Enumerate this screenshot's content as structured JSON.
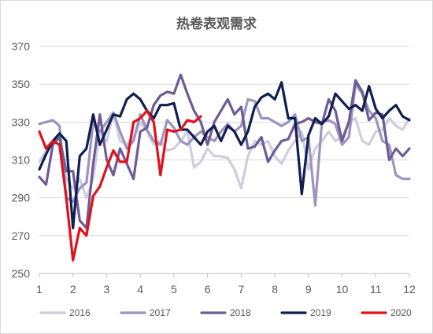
{
  "chart_data": {
    "type": "line",
    "title": "热卷表观需求",
    "xlabel": "",
    "ylabel": "",
    "xlim": [
      1,
      12
    ],
    "ylim": [
      250,
      370
    ],
    "x_ticks": [
      1,
      2,
      3,
      4,
      5,
      6,
      7,
      8,
      9,
      10,
      11,
      12
    ],
    "y_ticks": [
      250,
      270,
      290,
      310,
      330,
      350,
      370
    ],
    "grid": "horizontal",
    "legend_position": "bottom",
    "series": [
      {
        "name": "2016",
        "color": "#d0cede",
        "x": [
          1.0,
          1.2,
          1.4,
          1.6,
          1.8,
          2.0,
          2.2,
          2.4,
          2.6,
          2.8,
          3.0,
          3.2,
          3.4,
          3.6,
          3.8,
          4.0,
          4.2,
          4.4,
          4.6,
          4.8,
          5.0,
          5.2,
          5.4,
          5.6,
          5.8,
          6.0,
          6.2,
          6.4,
          6.6,
          6.8,
          7.0,
          7.2,
          7.4,
          7.6,
          7.8,
          8.0,
          8.2,
          8.4,
          8.6,
          8.8,
          9.0,
          9.2,
          9.4,
          9.6,
          9.8,
          10.0,
          10.2,
          10.4,
          10.6,
          10.8,
          11.0,
          11.2,
          11.4,
          11.6,
          11.8,
          12.0
        ],
        "values": [
          309,
          315,
          320,
          318,
          300,
          295,
          300,
          290,
          300,
          325,
          320,
          335,
          320,
          318,
          322,
          330,
          325,
          318,
          320,
          315,
          316,
          320,
          325,
          306,
          309,
          316,
          312,
          312,
          311,
          305,
          295,
          312,
          320,
          318,
          320,
          312,
          308,
          315,
          320,
          325,
          305,
          316,
          320,
          325,
          320,
          322,
          330,
          332,
          320,
          318,
          325,
          326,
          332,
          328,
          326,
          332
        ]
      },
      {
        "name": "2017",
        "color": "#9c95bf",
        "x": [
          1.0,
          1.2,
          1.4,
          1.6,
          1.8,
          2.0,
          2.2,
          2.4,
          2.6,
          2.8,
          3.0,
          3.2,
          3.4,
          3.6,
          3.8,
          4.0,
          4.2,
          4.4,
          4.6,
          4.8,
          5.0,
          5.2,
          5.4,
          5.6,
          5.8,
          6.0,
          6.2,
          6.4,
          6.6,
          6.8,
          7.0,
          7.2,
          7.4,
          7.6,
          7.8,
          8.0,
          8.2,
          8.4,
          8.6,
          8.8,
          9.0,
          9.2,
          9.4,
          9.6,
          9.8,
          10.0,
          10.2,
          10.4,
          10.6,
          10.8,
          11.0,
          11.2,
          11.4,
          11.6,
          11.8,
          12.0
        ],
        "values": [
          329,
          330,
          331,
          328,
          290,
          288,
          295,
          298,
          330,
          325,
          330,
          335,
          325,
          316,
          320,
          334,
          326,
          320,
          318,
          331,
          327,
          320,
          318,
          322,
          325,
          322,
          320,
          325,
          329,
          325,
          328,
          342,
          341,
          332,
          332,
          330,
          328,
          330,
          334,
          320,
          322,
          286,
          330,
          331,
          329,
          318,
          322,
          350,
          345,
          336,
          332,
          320,
          318,
          302,
          300,
          300
        ]
      },
      {
        "name": "2018",
        "color": "#6d5c96",
        "x": [
          1.0,
          1.2,
          1.4,
          1.6,
          1.8,
          2.0,
          2.2,
          2.4,
          2.6,
          2.8,
          3.0,
          3.2,
          3.4,
          3.6,
          3.8,
          4.0,
          4.2,
          4.4,
          4.6,
          4.8,
          5.0,
          5.2,
          5.4,
          5.6,
          5.8,
          6.0,
          6.2,
          6.4,
          6.6,
          6.8,
          7.0,
          7.2,
          7.4,
          7.6,
          7.8,
          8.0,
          8.2,
          8.4,
          8.6,
          8.8,
          9.0,
          9.2,
          9.4,
          9.6,
          9.8,
          10.0,
          10.2,
          10.4,
          10.6,
          10.8,
          11.0,
          11.2,
          11.4,
          11.6,
          11.8,
          12.0
        ],
        "values": [
          301,
          297,
          318,
          322,
          304,
          304,
          278,
          274,
          308,
          334,
          310,
          302,
          316,
          308,
          300,
          325,
          327,
          339,
          344,
          346,
          345,
          355,
          345,
          336,
          330,
          318,
          330,
          336,
          342,
          334,
          338,
          316,
          317,
          322,
          309,
          315,
          320,
          321,
          329,
          330,
          332,
          330,
          329,
          342,
          336,
          320,
          330,
          352,
          346,
          331,
          335,
          334,
          310,
          316,
          312,
          316
        ]
      },
      {
        "name": "2019",
        "color": "#0f1f50",
        "x": [
          1.0,
          1.2,
          1.4,
          1.6,
          1.8,
          2.0,
          2.2,
          2.4,
          2.6,
          2.8,
          3.0,
          3.2,
          3.4,
          3.6,
          3.8,
          4.0,
          4.2,
          4.4,
          4.6,
          4.8,
          5.0,
          5.2,
          5.4,
          5.6,
          5.8,
          6.0,
          6.2,
          6.4,
          6.6,
          6.8,
          7.0,
          7.2,
          7.4,
          7.6,
          7.8,
          8.0,
          8.2,
          8.4,
          8.6,
          8.8,
          9.0,
          9.2,
          9.4,
          9.6,
          9.8,
          10.0,
          10.2,
          10.4,
          10.6,
          10.8,
          11.0,
          11.2,
          11.4,
          11.6,
          11.8,
          12.0
        ],
        "values": [
          305,
          313,
          320,
          324,
          320,
          274,
          312,
          316,
          334,
          318,
          326,
          334,
          333,
          342,
          345,
          342,
          336,
          332,
          339,
          339,
          340,
          326,
          326,
          322,
          318,
          325,
          328,
          320,
          328,
          325,
          318,
          325,
          338,
          343,
          345,
          342,
          351,
          332,
          332,
          292,
          323,
          332,
          329,
          333,
          345,
          341,
          337,
          339,
          336,
          349,
          337,
          332,
          336,
          339,
          333,
          331
        ]
      },
      {
        "name": "2020",
        "color": "#e3101b",
        "x": [
          1.0,
          1.2,
          1.4,
          1.6,
          1.8,
          2.0,
          2.2,
          2.4,
          2.6,
          2.8,
          3.0,
          3.2,
          3.4,
          3.6,
          3.8,
          4.0,
          4.2,
          4.4,
          4.6,
          4.8,
          5.0,
          5.2,
          5.4,
          5.6,
          5.8
        ],
        "values": [
          325,
          316,
          320,
          318,
          290,
          257,
          274,
          270,
          291,
          296,
          306,
          315,
          309,
          309,
          330,
          332,
          336,
          330,
          302,
          326,
          325,
          326,
          331,
          330,
          333
        ]
      }
    ]
  }
}
